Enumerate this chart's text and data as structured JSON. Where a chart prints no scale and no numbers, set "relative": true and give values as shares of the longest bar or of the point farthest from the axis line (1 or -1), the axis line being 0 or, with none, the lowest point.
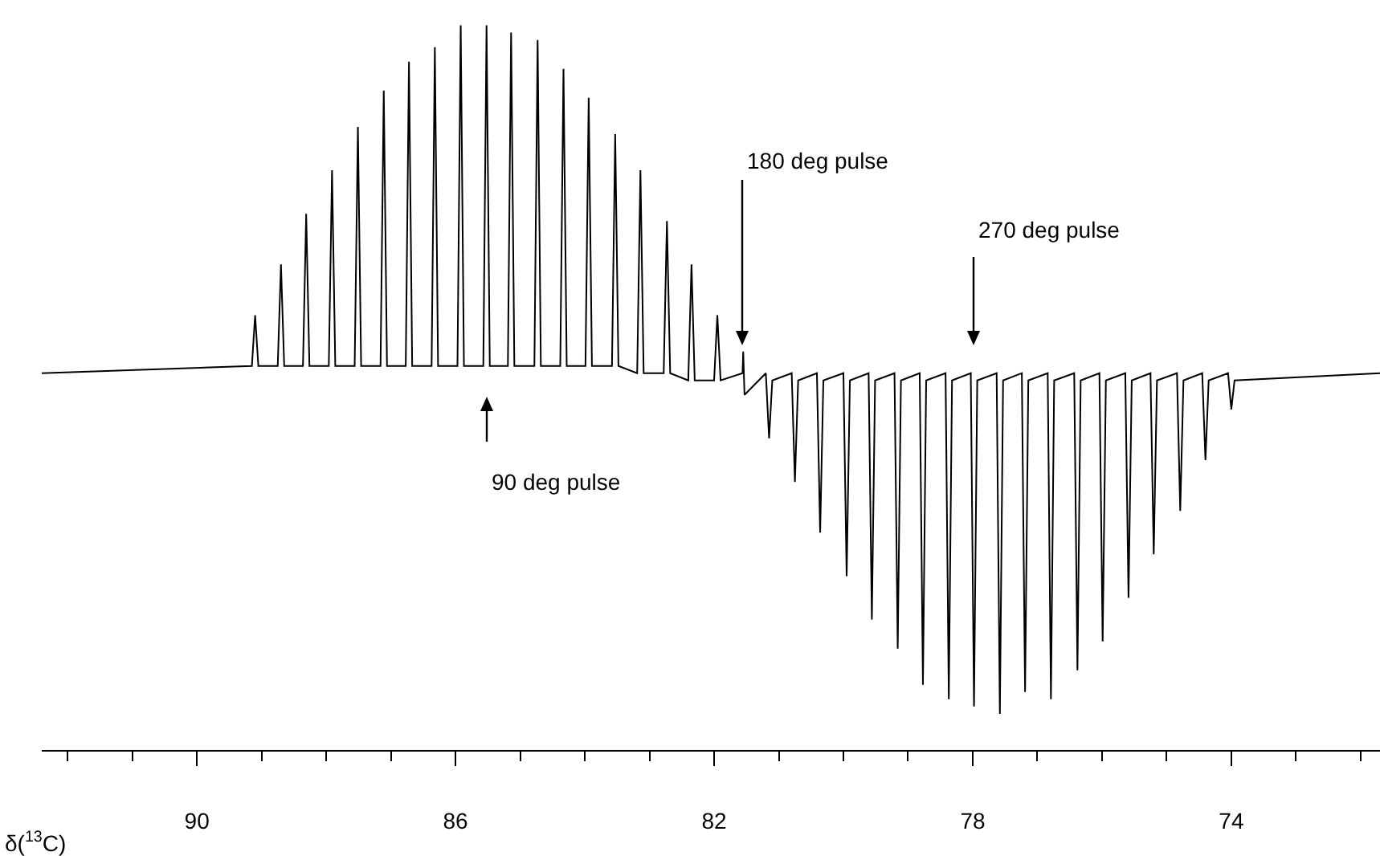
{
  "chart_data": {
    "type": "line",
    "relative": true,
    "xlabel": "δ($^{13}$C)",
    "xlim": [
      92.4,
      71.7
    ],
    "xticks": [
      {
        "value": 92,
        "label": null
      },
      {
        "value": 91,
        "label": null
      },
      90,
      {
        "value": 89,
        "label": null
      },
      {
        "value": 88,
        "label": null
      },
      {
        "value": 87,
        "label": null
      },
      86,
      {
        "value": 85,
        "label": null
      },
      {
        "value": 84,
        "label": null
      },
      {
        "value": 83,
        "label": null
      },
      82,
      {
        "value": 81,
        "label": null
      },
      {
        "value": 80,
        "label": null
      },
      {
        "value": 79,
        "label": null
      },
      78,
      {
        "value": 77,
        "label": null
      },
      {
        "value": 76,
        "label": null
      },
      {
        "value": 75,
        "label": null
      },
      74,
      {
        "value": 73,
        "label": null
      },
      {
        "value": 72,
        "label": null
      }
    ],
    "grid": false,
    "marker": "none",
    "line_style": "solid",
    "annotations": [
      "90 deg pulse",
      "180 deg pulse",
      "270 deg pulse"
    ],
    "series": [
      {
        "color": "#000000",
        "x": [
          92.4,
          89.15,
          89.1,
          89.05,
          88.75,
          88.7,
          88.65,
          88.36,
          88.31,
          88.26,
          87.96,
          87.91,
          87.86,
          87.56,
          87.51,
          87.46,
          87.16,
          87.11,
          87.06,
          86.77,
          86.72,
          86.67,
          86.37,
          86.32,
          86.27,
          85.97,
          85.92,
          85.87,
          85.57,
          85.52,
          85.47,
          85.19,
          85.14,
          85.09,
          84.78,
          84.73,
          84.68,
          84.38,
          84.33,
          84.28,
          83.99,
          83.94,
          83.89,
          83.58,
          83.53,
          83.48,
          83.19,
          83.14,
          83.09,
          82.78,
          82.73,
          82.68,
          82.4,
          82.35,
          82.3,
          82.0,
          81.95,
          81.9,
          81.56,
          81.55,
          81.53,
          81.2,
          81.15,
          81.1,
          80.8,
          80.75,
          80.7,
          80.41,
          80.36,
          80.31,
          80.0,
          79.95,
          79.9,
          79.61,
          79.56,
          79.51,
          79.21,
          79.16,
          79.11,
          78.82,
          78.77,
          78.72,
          78.42,
          78.37,
          78.32,
          78.03,
          77.98,
          77.93,
          77.63,
          77.58,
          77.53,
          77.24,
          77.19,
          77.14,
          76.84,
          76.79,
          76.74,
          76.43,
          76.38,
          76.33,
          76.04,
          75.99,
          75.94,
          75.64,
          75.59,
          75.54,
          75.25,
          75.2,
          75.15,
          74.84,
          74.79,
          74.74,
          74.45,
          74.4,
          74.35,
          74.05,
          74.0,
          73.95,
          71.7
        ],
        "values": [
          0.52,
          0.53,
          0.6,
          0.53,
          0.53,
          0.67,
          0.53,
          0.53,
          0.74,
          0.53,
          0.53,
          0.8,
          0.53,
          0.53,
          0.86,
          0.53,
          0.53,
          0.91,
          0.53,
          0.53,
          0.95,
          0.53,
          0.53,
          0.97,
          0.53,
          0.53,
          1.0,
          0.53,
          0.53,
          1.0,
          0.53,
          0.53,
          0.99,
          0.53,
          0.53,
          0.98,
          0.53,
          0.53,
          0.94,
          0.53,
          0.53,
          0.9,
          0.53,
          0.53,
          0.85,
          0.53,
          0.52,
          0.8,
          0.52,
          0.52,
          0.73,
          0.52,
          0.51,
          0.67,
          0.51,
          0.51,
          0.6,
          0.51,
          0.52,
          0.55,
          0.49,
          0.52,
          0.43,
          0.51,
          0.52,
          0.37,
          0.51,
          0.52,
          0.3,
          0.51,
          0.52,
          0.24,
          0.51,
          0.52,
          0.18,
          0.51,
          0.52,
          0.14,
          0.51,
          0.52,
          0.09,
          0.51,
          0.52,
          0.07,
          0.51,
          0.52,
          0.06,
          0.51,
          0.52,
          0.05,
          0.51,
          0.52,
          0.08,
          0.51,
          0.52,
          0.07,
          0.51,
          0.52,
          0.11,
          0.51,
          0.52,
          0.15,
          0.51,
          0.52,
          0.21,
          0.51,
          0.52,
          0.27,
          0.51,
          0.52,
          0.33,
          0.51,
          0.52,
          0.4,
          0.51,
          0.52,
          0.47,
          0.51,
          0.52
        ]
      }
    ]
  }
}
